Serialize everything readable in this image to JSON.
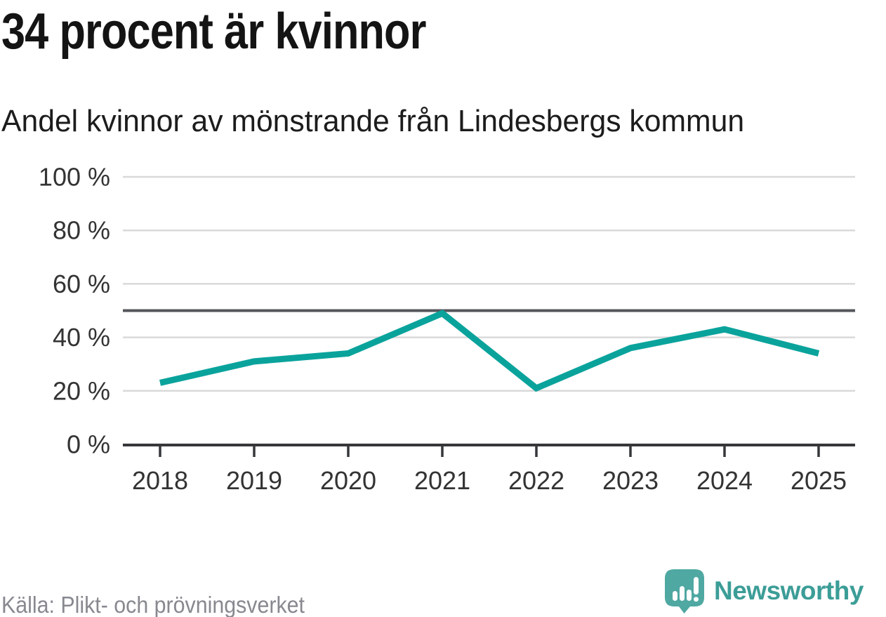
{
  "header": {
    "title": "34 procent är kvinnor",
    "subtitle": "Andel kvinnor av mönstrande från Lindesbergs kommun"
  },
  "chart_data": {
    "type": "line",
    "title": "Andel kvinnor av mönstrande från Lindesbergs kommun",
    "x": [
      "2018",
      "2019",
      "2020",
      "2021",
      "2022",
      "2023",
      "2024",
      "2025"
    ],
    "series": [
      {
        "name": "Andel kvinnor",
        "values": [
          23,
          31,
          34,
          49,
          21,
          36,
          43,
          34
        ]
      }
    ],
    "unit": "%",
    "ylim": [
      0,
      100
    ],
    "yticks": [
      0,
      20,
      40,
      60,
      80,
      100
    ],
    "ytick_suffix": " %",
    "reference_line": 50,
    "grid": true,
    "legend": "none"
  },
  "footer": {
    "source": "Källa: Plikt- och prövningsverket",
    "brand": "Newsworthy"
  },
  "colors": {
    "line": "#0aa39c",
    "reference_line": "#54565b",
    "grid": "#d9d9d9",
    "axis": "#36373a",
    "tick_label": "#333333",
    "title_text": "#141414",
    "muted_text": "#87898f",
    "brand_teal": "#3c9d97",
    "logo_bubble": "#4fa8a2",
    "logo_glyph": "#ffffff"
  }
}
